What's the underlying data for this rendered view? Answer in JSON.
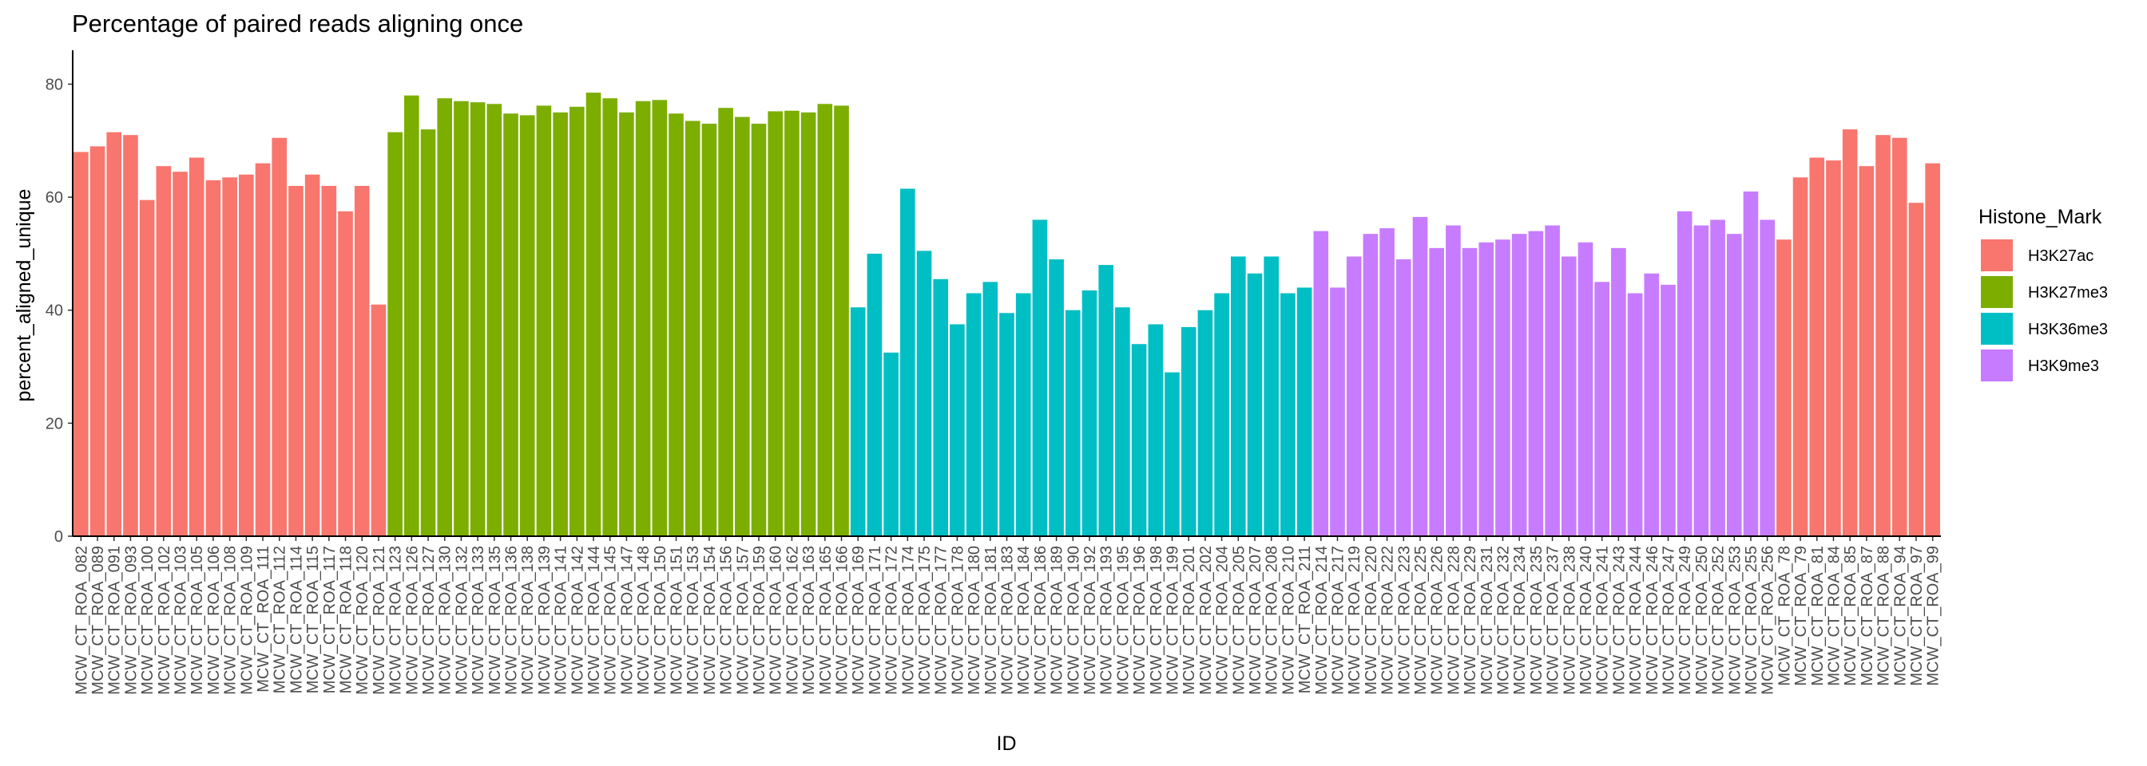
{
  "chart_data": {
    "type": "bar",
    "title": "Percentage of paired reads aligning once",
    "x_label": "ID",
    "y_label": "percent_aligned_unique",
    "legend_title": "Histone_Mark",
    "ylim": [
      0,
      86
    ],
    "yticks": [
      0,
      20,
      40,
      60,
      80
    ],
    "grid": false,
    "categories": [
      "MCW_CT_ROA_082",
      "MCW_CT_ROA_089",
      "MCW_CT_ROA_091",
      "MCW_CT_ROA_093",
      "MCW_CT_ROA_100",
      "MCW_CT_ROA_102",
      "MCW_CT_ROA_103",
      "MCW_CT_ROA_105",
      "MCW_CT_ROA_106",
      "MCW_CT_ROA_108",
      "MCW_CT_ROA_109",
      "MCW_CT_ROA_111",
      "MCW_CT_ROA_112",
      "MCW_CT_ROA_114",
      "MCW_CT_ROA_115",
      "MCW_CT_ROA_117",
      "MCW_CT_ROA_118",
      "MCW_CT_ROA_120",
      "MCW_CT_ROA_121",
      "MCW_CT_ROA_123",
      "MCW_CT_ROA_126",
      "MCW_CT_ROA_127",
      "MCW_CT_ROA_130",
      "MCW_CT_ROA_132",
      "MCW_CT_ROA_133",
      "MCW_CT_ROA_135",
      "MCW_CT_ROA_136",
      "MCW_CT_ROA_138",
      "MCW_CT_ROA_139",
      "MCW_CT_ROA_141",
      "MCW_CT_ROA_142",
      "MCW_CT_ROA_144",
      "MCW_CT_ROA_145",
      "MCW_CT_ROA_147",
      "MCW_CT_ROA_148",
      "MCW_CT_ROA_150",
      "MCW_CT_ROA_151",
      "MCW_CT_ROA_153",
      "MCW_CT_ROA_154",
      "MCW_CT_ROA_156",
      "MCW_CT_ROA_157",
      "MCW_CT_ROA_159",
      "MCW_CT_ROA_160",
      "MCW_CT_ROA_162",
      "MCW_CT_ROA_163",
      "MCW_CT_ROA_165",
      "MCW_CT_ROA_166",
      "MCW_CT_ROA_169",
      "MCW_CT_ROA_171",
      "MCW_CT_ROA_172",
      "MCW_CT_ROA_174",
      "MCW_CT_ROA_175",
      "MCW_CT_ROA_177",
      "MCW_CT_ROA_178",
      "MCW_CT_ROA_180",
      "MCW_CT_ROA_181",
      "MCW_CT_ROA_183",
      "MCW_CT_ROA_184",
      "MCW_CT_ROA_186",
      "MCW_CT_ROA_189",
      "MCW_CT_ROA_190",
      "MCW_CT_ROA_192",
      "MCW_CT_ROA_193",
      "MCW_CT_ROA_195",
      "MCW_CT_ROA_196",
      "MCW_CT_ROA_198",
      "MCW_CT_ROA_199",
      "MCW_CT_ROA_201",
      "MCW_CT_ROA_202",
      "MCW_CT_ROA_204",
      "MCW_CT_ROA_205",
      "MCW_CT_ROA_207",
      "MCW_CT_ROA_208",
      "MCW_CT_ROA_210",
      "MCW_CT_ROA_211",
      "MCW_CT_ROA_214",
      "MCW_CT_ROA_217",
      "MCW_CT_ROA_219",
      "MCW_CT_ROA_220",
      "MCW_CT_ROA_222",
      "MCW_CT_ROA_223",
      "MCW_CT_ROA_225",
      "MCW_CT_ROA_226",
      "MCW_CT_ROA_228",
      "MCW_CT_ROA_229",
      "MCW_CT_ROA_231",
      "MCW_CT_ROA_232",
      "MCW_CT_ROA_234",
      "MCW_CT_ROA_235",
      "MCW_CT_ROA_237",
      "MCW_CT_ROA_238",
      "MCW_CT_ROA_240",
      "MCW_CT_ROA_241",
      "MCW_CT_ROA_243",
      "MCW_CT_ROA_244",
      "MCW_CT_ROA_246",
      "MCW_CT_ROA_247",
      "MCW_CT_ROA_249",
      "MCW_CT_ROA_250",
      "MCW_CT_ROA_252",
      "MCW_CT_ROA_253",
      "MCW_CT_ROA_255",
      "MCW_CT_ROA_256",
      "MCW_CT_ROA_78",
      "MCW_CT_ROA_79",
      "MCW_CT_ROA_81",
      "MCW_CT_ROA_84",
      "MCW_CT_ROA_85",
      "MCW_CT_ROA_87",
      "MCW_CT_ROA_88",
      "MCW_CT_ROA_94",
      "MCW_CT_ROA_97",
      "MCW_CT_ROA_99"
    ],
    "series": [
      {
        "name": "H3K27ac",
        "color": "#f8766d",
        "values": [
          68,
          69,
          71.5,
          71,
          59.5,
          65.5,
          64.5,
          67,
          63,
          63.5,
          64,
          66,
          70.5,
          62,
          64,
          62,
          57.5,
          62,
          41,
          null,
          null,
          null,
          null,
          null,
          null,
          null,
          null,
          null,
          null,
          null,
          null,
          null,
          null,
          null,
          null,
          null,
          null,
          null,
          null,
          null,
          null,
          null,
          null,
          null,
          null,
          null,
          null,
          null,
          null,
          null,
          null,
          null,
          null,
          null,
          null,
          null,
          null,
          null,
          null,
          null,
          null,
          null,
          null,
          null,
          null,
          null,
          null,
          null,
          null,
          null,
          null,
          null,
          null,
          null,
          null,
          null,
          null,
          null,
          null,
          null,
          null,
          null,
          null,
          null,
          null,
          null,
          null,
          null,
          null,
          null,
          null,
          null,
          null,
          null,
          null,
          null,
          null,
          null,
          null,
          null,
          null,
          null,
          null,
          52.5,
          63.5,
          67,
          66.5,
          72,
          65.5,
          71,
          70.5,
          59,
          66
        ]
      },
      {
        "name": "H3K27me3",
        "color": "#7cae00",
        "values": [
          null,
          null,
          null,
          null,
          null,
          null,
          null,
          null,
          null,
          null,
          null,
          null,
          null,
          null,
          null,
          null,
          null,
          null,
          null,
          71.5,
          78,
          72,
          77.5,
          77,
          76.8,
          76.5,
          74.8,
          74.5,
          76.2,
          75,
          76,
          78.5,
          77.5,
          75,
          77,
          77.2,
          74.8,
          73.5,
          73,
          75.8,
          74.2,
          73,
          75.2,
          75.3,
          75,
          76.5,
          76.2,
          null,
          null,
          null,
          null,
          null,
          null,
          null,
          null,
          null,
          null,
          null,
          null,
          null,
          null,
          null,
          null,
          null,
          null,
          null,
          null,
          null,
          null,
          null,
          null,
          null,
          null,
          null,
          null,
          null,
          null,
          null,
          null,
          null,
          null,
          null,
          null,
          null,
          null,
          null,
          null,
          null,
          null,
          null,
          null,
          null,
          null,
          null,
          null,
          null,
          null,
          null,
          null,
          null,
          null,
          null,
          null,
          null,
          null,
          null,
          null,
          null,
          null,
          null,
          null,
          null,
          null
        ]
      },
      {
        "name": "H3K36me3",
        "color": "#00bfc4",
        "values": [
          null,
          null,
          null,
          null,
          null,
          null,
          null,
          null,
          null,
          null,
          null,
          null,
          null,
          null,
          null,
          null,
          null,
          null,
          null,
          null,
          null,
          null,
          null,
          null,
          null,
          null,
          null,
          null,
          null,
          null,
          null,
          null,
          null,
          null,
          null,
          null,
          null,
          null,
          null,
          null,
          null,
          null,
          null,
          null,
          null,
          null,
          null,
          40.5,
          50,
          32.5,
          61.5,
          50.5,
          45.5,
          37.5,
          43,
          45,
          39.5,
          43,
          56,
          49,
          40,
          43.5,
          48,
          40.5,
          34,
          37.5,
          29,
          37,
          40,
          43,
          49.5,
          46.5,
          49.5,
          43,
          44,
          null,
          null,
          null,
          null,
          null,
          null,
          null,
          null,
          null,
          null,
          null,
          null,
          null,
          null,
          null,
          null,
          null,
          null,
          null,
          null,
          null,
          null,
          null,
          null,
          null,
          null,
          null,
          null,
          null,
          null,
          null,
          null,
          null,
          null,
          null,
          null,
          null,
          null
        ]
      },
      {
        "name": "H3K9me3",
        "color": "#c77cff",
        "values": [
          null,
          null,
          null,
          null,
          null,
          null,
          null,
          null,
          null,
          null,
          null,
          null,
          null,
          null,
          null,
          null,
          null,
          null,
          null,
          null,
          null,
          null,
          null,
          null,
          null,
          null,
          null,
          null,
          null,
          null,
          null,
          null,
          null,
          null,
          null,
          null,
          null,
          null,
          null,
          null,
          null,
          null,
          null,
          null,
          null,
          null,
          null,
          null,
          null,
          null,
          null,
          null,
          null,
          null,
          null,
          null,
          null,
          null,
          null,
          null,
          null,
          null,
          null,
          null,
          null,
          null,
          null,
          null,
          null,
          null,
          null,
          null,
          null,
          null,
          null,
          54,
          44,
          49.5,
          53.5,
          54.5,
          49,
          56.5,
          51,
          55,
          51,
          52,
          52.5,
          53.5,
          54,
          55,
          49.5,
          52,
          45,
          51,
          43,
          46.5,
          44.5,
          57.5,
          55,
          56,
          53.5,
          61,
          56,
          null,
          null,
          null,
          null,
          null,
          null,
          null,
          null,
          null,
          null
        ]
      }
    ]
  }
}
